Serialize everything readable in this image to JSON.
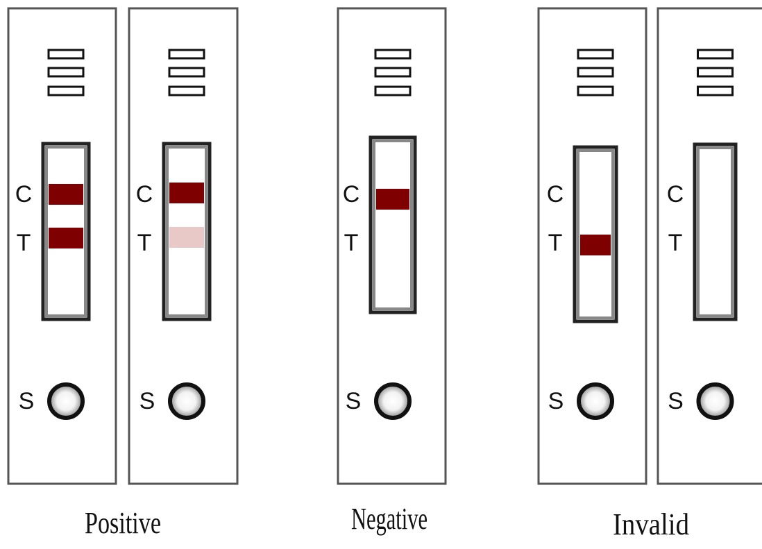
{
  "cassettes": [
    {
      "c": "C",
      "t": "T",
      "s": "S"
    },
    {
      "c": "C",
      "t": "T",
      "s": "S"
    },
    {
      "c": "C",
      "t": "T",
      "s": "S"
    },
    {
      "c": "C",
      "t": "T",
      "s": "S"
    },
    {
      "c": "C",
      "t": "T",
      "s": "S"
    }
  ],
  "groups": [
    {
      "label": "Positive"
    },
    {
      "label": "Negative"
    },
    {
      "label": "Invalid"
    }
  ]
}
